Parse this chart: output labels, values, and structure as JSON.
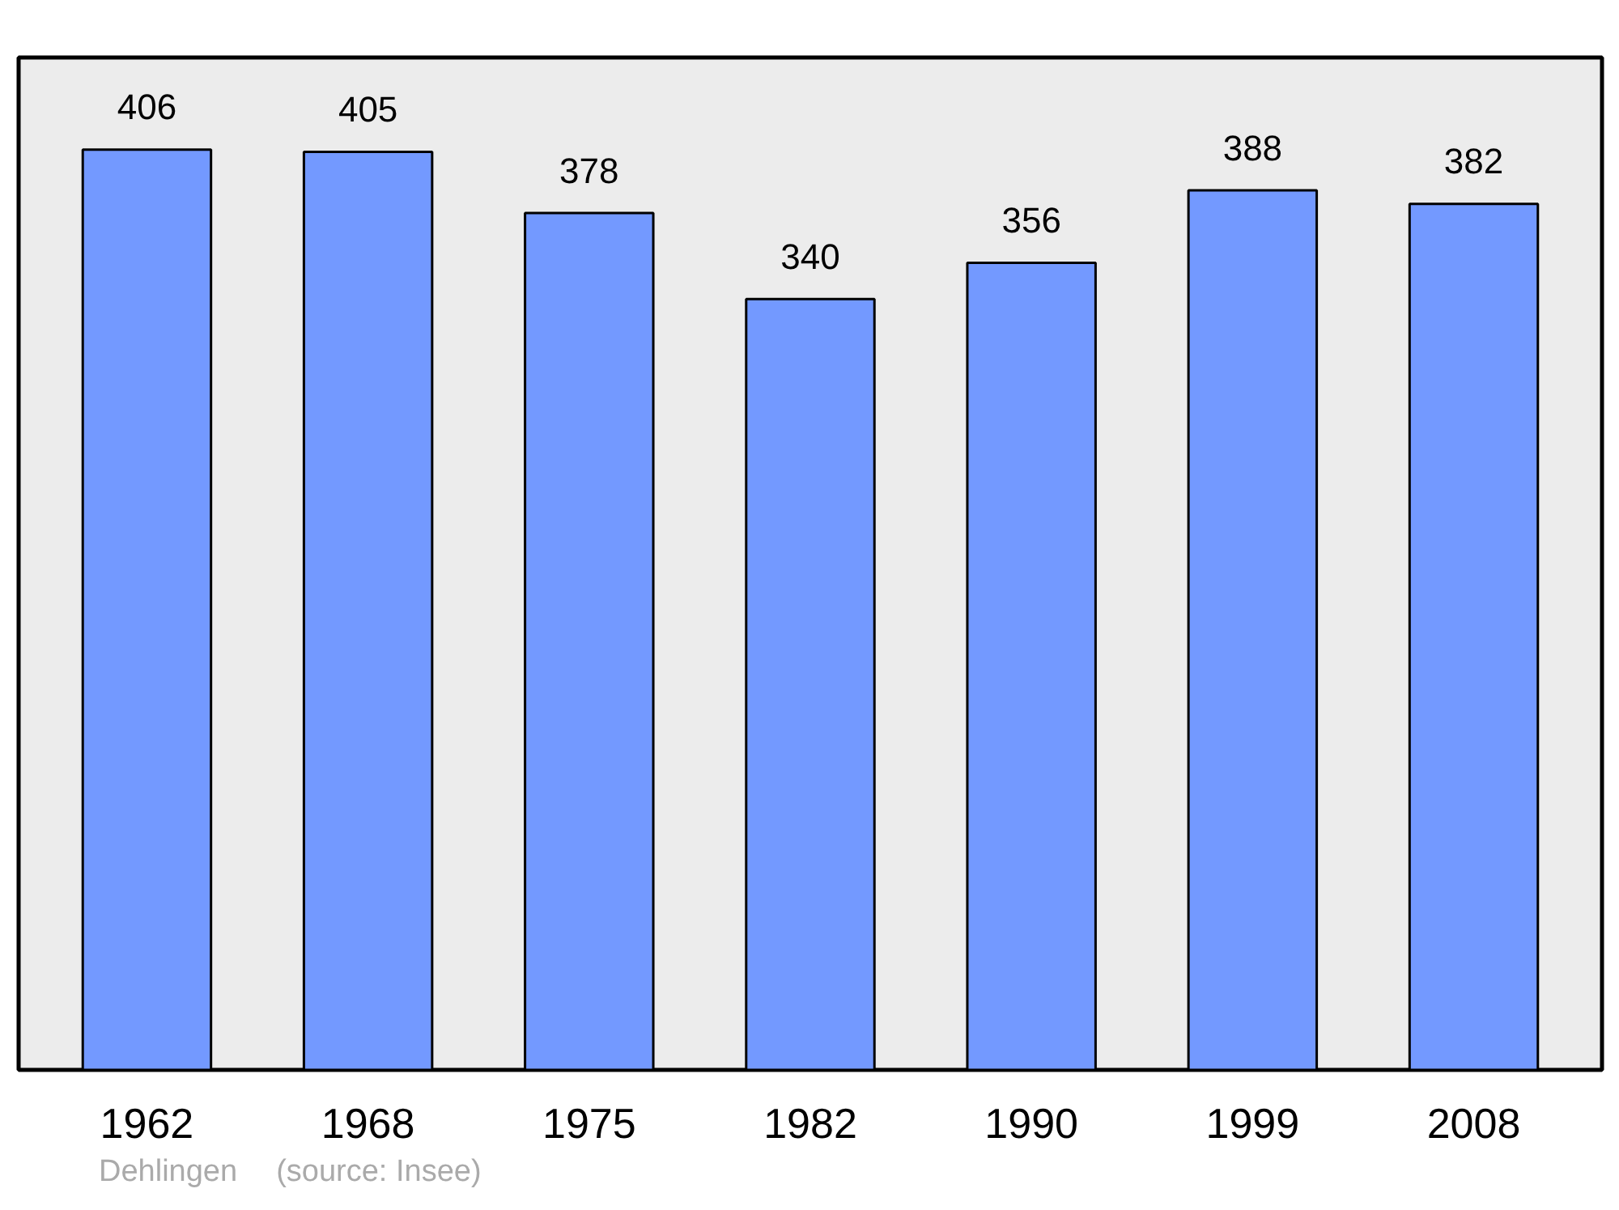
{
  "chart_data": {
    "type": "bar",
    "categories": [
      "1962",
      "1968",
      "1975",
      "1982",
      "1990",
      "1999",
      "2008"
    ],
    "values": [
      406,
      405,
      378,
      340,
      356,
      388,
      382
    ],
    "color": "#7399ff",
    "data_labels": true,
    "grid": false,
    "annotations": [
      "Dehlingen",
      "(source: Insee)"
    ]
  }
}
